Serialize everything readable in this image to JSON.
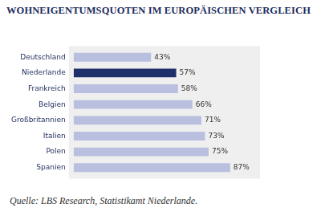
{
  "chart_data": {
    "type": "bar",
    "orientation": "horizontal",
    "title": "WOHNEIGENTUMSQUOTEN IM EUROPÄISCHEN VERGLEICH",
    "source": "Quelle: LBS Research, Statistikamt Niederlande.",
    "categories": [
      "Deutschland",
      "Niederlande",
      "Frankreich",
      "Belgien",
      "Großbritannien",
      "Italien",
      "Polen",
      "Spanien"
    ],
    "values": [
      43,
      57,
      58,
      66,
      71,
      73,
      75,
      87
    ],
    "value_labels": [
      "43%",
      "57%",
      "58%",
      "66%",
      "71%",
      "73%",
      "75%",
      "87%"
    ],
    "colors": [
      "#b9bfdf",
      "#1f2f6b",
      "#b9bfdf",
      "#b9bfdf",
      "#b9bfdf",
      "#b9bfdf",
      "#b9bfdf",
      "#b9bfdf"
    ],
    "xlim": [
      0,
      100
    ],
    "data_labels": true,
    "grid": false,
    "tick_labels": "y"
  }
}
